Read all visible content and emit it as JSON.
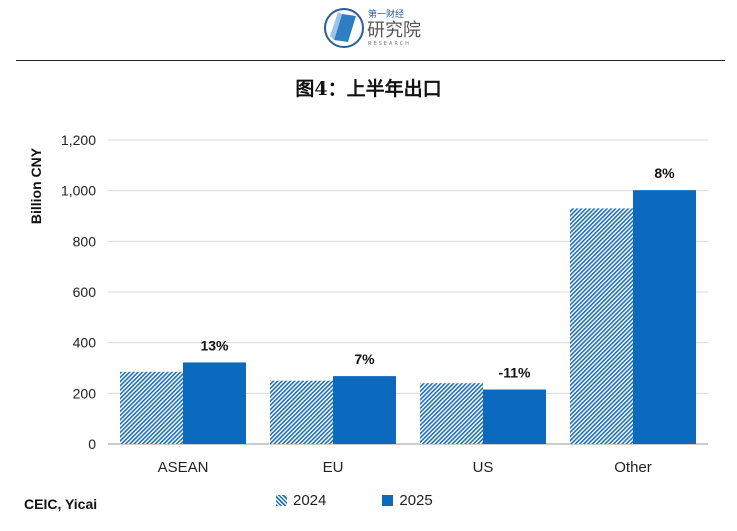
{
  "header": {
    "logo_text_top": "第一财经",
    "logo_text_main": "研究院",
    "logo_text_sub": "RESEARCH"
  },
  "colors": {
    "series_2024": "#1f6fb8",
    "series_2025": "#0b6abd"
  },
  "source": "CEIC, Yicai",
  "chart_data": {
    "type": "bar",
    "title": "图4：上半年出口",
    "ylabel": "Billion CNY",
    "xlabel": "",
    "ylim": [
      0,
      1200
    ],
    "yticks": [
      0,
      200,
      400,
      600,
      800,
      1000,
      1200
    ],
    "ytick_labels": [
      "0",
      "200",
      "400",
      "600",
      "800",
      "1,000",
      "1,200"
    ],
    "grid": true,
    "legend_position": "bottom",
    "categories": [
      "ASEAN",
      "EU",
      "US",
      "Other"
    ],
    "series": [
      {
        "name": "2024",
        "values": [
          285,
          250,
          240,
          930
        ],
        "pattern": "hatched"
      },
      {
        "name": "2025",
        "values": [
          322,
          268,
          215,
          1002
        ],
        "pattern": "solid"
      }
    ],
    "data_labels": [
      "13%",
      "7%",
      "-11%",
      "8%"
    ]
  }
}
